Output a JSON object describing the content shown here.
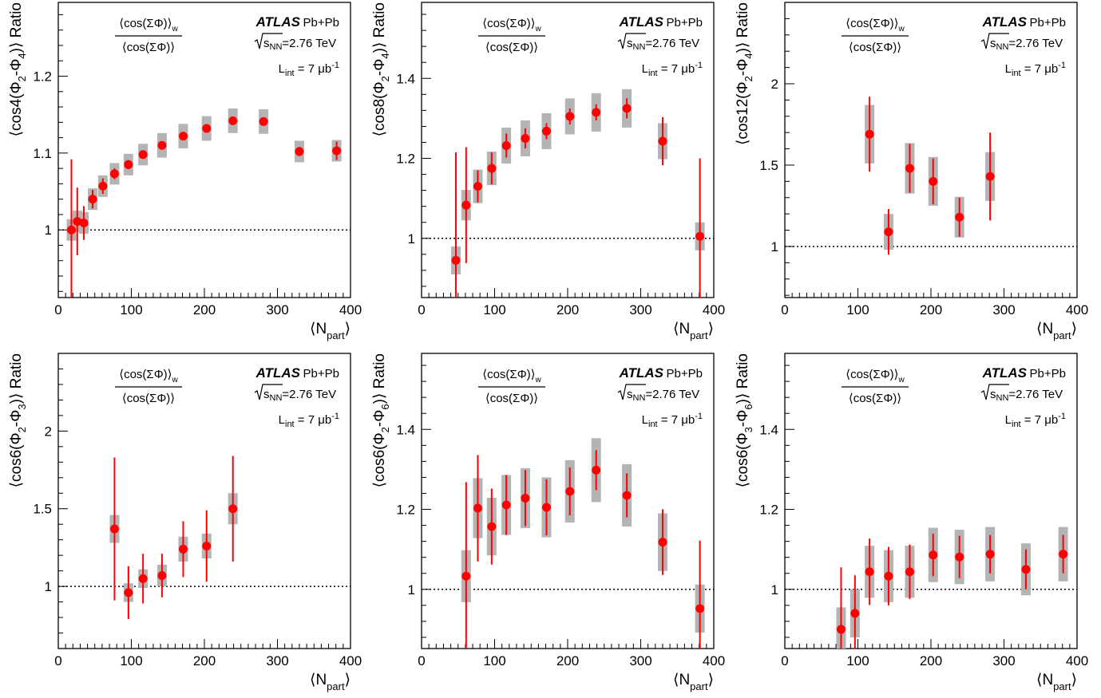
{
  "figure": {
    "experiment": "ATLAS",
    "system": "Pb+Pb",
    "energy_label": "=2.76 TeV",
    "sqrt_s_label": "s",
    "sqrt_s_sub": "NN",
    "lumi_prefix": "L",
    "lumi_sub": "int",
    "lumi_value": "= 7 μb",
    "lumi_exp": "-1",
    "ratio_numerator": "⟨cos(ΣΦ)⟩",
    "ratio_numerator_sub": "w",
    "ratio_denominator": "⟨cos(ΣΦ)⟩",
    "xlabel": "⟨N",
    "xlabel_sub": "part",
    "xlabel_close": "⟩",
    "colors": {
      "marker": "#ff0000",
      "syst_band": "#b4b4b4",
      "axis": "#000000",
      "reference_line": "#000000"
    }
  },
  "chart_data": [
    {
      "type": "scatter",
      "ylabel_parts": [
        "⟨cos4(Φ",
        "2",
        "-Φ",
        "4",
        ")⟩ Ratio"
      ],
      "xlim": [
        0,
        400
      ],
      "ylim": [
        0.912,
        1.296
      ],
      "xticks": [
        0,
        100,
        200,
        300,
        400
      ],
      "yticks": [
        1,
        1.1,
        1.2
      ],
      "ytick_labels": [
        "1",
        "1.1",
        "1.2"
      ],
      "reference_y": 1,
      "points": [
        {
          "x": 18,
          "y": 1.0,
          "err": 0.092,
          "syst": 0.014
        },
        {
          "x": 26,
          "y": 1.011,
          "err": 0.044,
          "syst": 0.014
        },
        {
          "x": 35,
          "y": 1.009,
          "err": 0.022,
          "syst": 0.014
        },
        {
          "x": 47,
          "y": 1.04,
          "err": 0.012,
          "syst": 0.014
        },
        {
          "x": 61,
          "y": 1.057,
          "err": 0.01,
          "syst": 0.014
        },
        {
          "x": 77,
          "y": 1.073,
          "err": 0.007,
          "syst": 0.014
        },
        {
          "x": 96,
          "y": 1.085,
          "err": 0.006,
          "syst": 0.014
        },
        {
          "x": 116,
          "y": 1.098,
          "err": 0.005,
          "syst": 0.014
        },
        {
          "x": 142,
          "y": 1.11,
          "err": 0.005,
          "syst": 0.016
        },
        {
          "x": 171,
          "y": 1.122,
          "err": 0.005,
          "syst": 0.016
        },
        {
          "x": 203,
          "y": 1.132,
          "err": 0.004,
          "syst": 0.016
        },
        {
          "x": 239,
          "y": 1.142,
          "err": 0.004,
          "syst": 0.016
        },
        {
          "x": 281,
          "y": 1.141,
          "err": 0.004,
          "syst": 0.016
        },
        {
          "x": 330,
          "y": 1.102,
          "err": 0.006,
          "syst": 0.014
        },
        {
          "x": 381,
          "y": 1.103,
          "err": 0.012,
          "syst": 0.014
        }
      ]
    },
    {
      "type": "scatter",
      "ylabel_parts": [
        "⟨cos8(Φ",
        "2",
        "-Φ",
        "4",
        ")⟩ Ratio"
      ],
      "xlim": [
        0,
        400
      ],
      "ylim": [
        0.852,
        1.59
      ],
      "xticks": [
        0,
        100,
        200,
        300,
        400
      ],
      "yticks": [
        1,
        1.2,
        1.4
      ],
      "ytick_labels": [
        "1",
        "1.2",
        "1.4"
      ],
      "reference_y": 1,
      "points": [
        {
          "x": 47,
          "y": 0.945,
          "err": 0.27,
          "syst": 0.035
        },
        {
          "x": 61,
          "y": 1.083,
          "err": 0.145,
          "syst": 0.038
        },
        {
          "x": 77,
          "y": 1.13,
          "err": 0.04,
          "syst": 0.042
        },
        {
          "x": 96,
          "y": 1.175,
          "err": 0.04,
          "syst": 0.042
        },
        {
          "x": 116,
          "y": 1.232,
          "err": 0.03,
          "syst": 0.045
        },
        {
          "x": 142,
          "y": 1.25,
          "err": 0.025,
          "syst": 0.045
        },
        {
          "x": 171,
          "y": 1.268,
          "err": 0.02,
          "syst": 0.045
        },
        {
          "x": 203,
          "y": 1.305,
          "err": 0.02,
          "syst": 0.045
        },
        {
          "x": 239,
          "y": 1.315,
          "err": 0.02,
          "syst": 0.048
        },
        {
          "x": 281,
          "y": 1.325,
          "err": 0.025,
          "syst": 0.048
        },
        {
          "x": 330,
          "y": 1.243,
          "err": 0.06,
          "syst": 0.045
        },
        {
          "x": 381,
          "y": 1.005,
          "err": 0.195,
          "syst": 0.035
        }
      ]
    },
    {
      "type": "scatter",
      "ylabel_parts": [
        "⟨cos12(Φ",
        "2",
        "-Φ",
        "4",
        ")⟩ Ratio"
      ],
      "xlim": [
        0,
        400
      ],
      "ylim": [
        0.686,
        2.5
      ],
      "xticks": [
        0,
        100,
        200,
        300,
        400
      ],
      "yticks": [
        1,
        1.5,
        2
      ],
      "ytick_labels": [
        "1",
        "1.5",
        "2"
      ],
      "reference_y": 1,
      "points": [
        {
          "x": 116,
          "y": 1.69,
          "err": 0.23,
          "syst": 0.18
        },
        {
          "x": 142,
          "y": 1.09,
          "err": 0.14,
          "syst": 0.11
        },
        {
          "x": 171,
          "y": 1.48,
          "err": 0.15,
          "syst": 0.155
        },
        {
          "x": 203,
          "y": 1.4,
          "err": 0.14,
          "syst": 0.15
        },
        {
          "x": 239,
          "y": 1.18,
          "err": 0.12,
          "syst": 0.125
        },
        {
          "x": 281,
          "y": 1.43,
          "err": 0.27,
          "syst": 0.15
        }
      ]
    },
    {
      "type": "scatter",
      "ylabel_parts": [
        "⟨cos6(Φ",
        "2",
        "-Φ",
        "3",
        ")⟩ Ratio"
      ],
      "xlim": [
        0,
        400
      ],
      "ylim": [
        0.6,
        2.5
      ],
      "xticks": [
        0,
        100,
        200,
        300,
        400
      ],
      "yticks": [
        1,
        1.5,
        2
      ],
      "ytick_labels": [
        "1",
        "1.5",
        "2"
      ],
      "reference_y": 1,
      "points": [
        {
          "x": 77,
          "y": 1.37,
          "err": 0.46,
          "syst": 0.09
        },
        {
          "x": 96,
          "y": 0.96,
          "err": 0.17,
          "syst": 0.06
        },
        {
          "x": 116,
          "y": 1.05,
          "err": 0.16,
          "syst": 0.06
        },
        {
          "x": 142,
          "y": 1.07,
          "err": 0.14,
          "syst": 0.07
        },
        {
          "x": 171,
          "y": 1.24,
          "err": 0.18,
          "syst": 0.08
        },
        {
          "x": 203,
          "y": 1.26,
          "err": 0.23,
          "syst": 0.08
        },
        {
          "x": 239,
          "y": 1.5,
          "err": 0.34,
          "syst": 0.1
        }
      ]
    },
    {
      "type": "scatter",
      "ylabel_parts": [
        "⟨cos6(Φ",
        "2",
        "-Φ",
        "6",
        ")⟩ Ratio"
      ],
      "xlim": [
        0,
        400
      ],
      "ylim": [
        0.852,
        1.59
      ],
      "xticks": [
        0,
        100,
        200,
        300,
        400
      ],
      "yticks": [
        1,
        1.2,
        1.4
      ],
      "ytick_labels": [
        "1",
        "1.2",
        "1.4"
      ],
      "reference_y": 1,
      "points": [
        {
          "x": 61,
          "y": 1.033,
          "err": 0.235,
          "syst": 0.065
        },
        {
          "x": 77,
          "y": 1.203,
          "err": 0.133,
          "syst": 0.075
        },
        {
          "x": 96,
          "y": 1.157,
          "err": 0.095,
          "syst": 0.072
        },
        {
          "x": 116,
          "y": 1.211,
          "err": 0.075,
          "syst": 0.075
        },
        {
          "x": 142,
          "y": 1.228,
          "err": 0.07,
          "syst": 0.075
        },
        {
          "x": 171,
          "y": 1.205,
          "err": 0.07,
          "syst": 0.075
        },
        {
          "x": 203,
          "y": 1.245,
          "err": 0.06,
          "syst": 0.078
        },
        {
          "x": 239,
          "y": 1.298,
          "err": 0.05,
          "syst": 0.08
        },
        {
          "x": 281,
          "y": 1.235,
          "err": 0.055,
          "syst": 0.078
        },
        {
          "x": 330,
          "y": 1.118,
          "err": 0.082,
          "syst": 0.072
        },
        {
          "x": 381,
          "y": 0.952,
          "err": 0.17,
          "syst": 0.06
        }
      ]
    },
    {
      "type": "scatter",
      "ylabel_parts": [
        "⟨cos6(Φ",
        "3",
        "-Φ",
        "6",
        ")⟩ Ratio"
      ],
      "xlim": [
        0,
        400
      ],
      "ylim": [
        0.852,
        1.59
      ],
      "xticks": [
        0,
        100,
        200,
        300,
        400
      ],
      "yticks": [
        1,
        1.2,
        1.4
      ],
      "ytick_labels": [
        "1",
        "1.2",
        "1.4"
      ],
      "reference_y": 1,
      "points": [
        {
          "x": 77,
          "y": 0.9,
          "err": 0.155,
          "syst": 0.055
        },
        {
          "x": 96,
          "y": 0.94,
          "err": 0.095,
          "syst": 0.06
        },
        {
          "x": 116,
          "y": 1.044,
          "err": 0.083,
          "syst": 0.065
        },
        {
          "x": 142,
          "y": 1.033,
          "err": 0.073,
          "syst": 0.065
        },
        {
          "x": 171,
          "y": 1.044,
          "err": 0.068,
          "syst": 0.065
        },
        {
          "x": 203,
          "y": 1.086,
          "err": 0.053,
          "syst": 0.068
        },
        {
          "x": 239,
          "y": 1.081,
          "err": 0.053,
          "syst": 0.068
        },
        {
          "x": 281,
          "y": 1.088,
          "err": 0.048,
          "syst": 0.068
        },
        {
          "x": 330,
          "y": 1.05,
          "err": 0.05,
          "syst": 0.065
        },
        {
          "x": 381,
          "y": 1.088,
          "err": 0.048,
          "syst": 0.068
        }
      ]
    }
  ]
}
